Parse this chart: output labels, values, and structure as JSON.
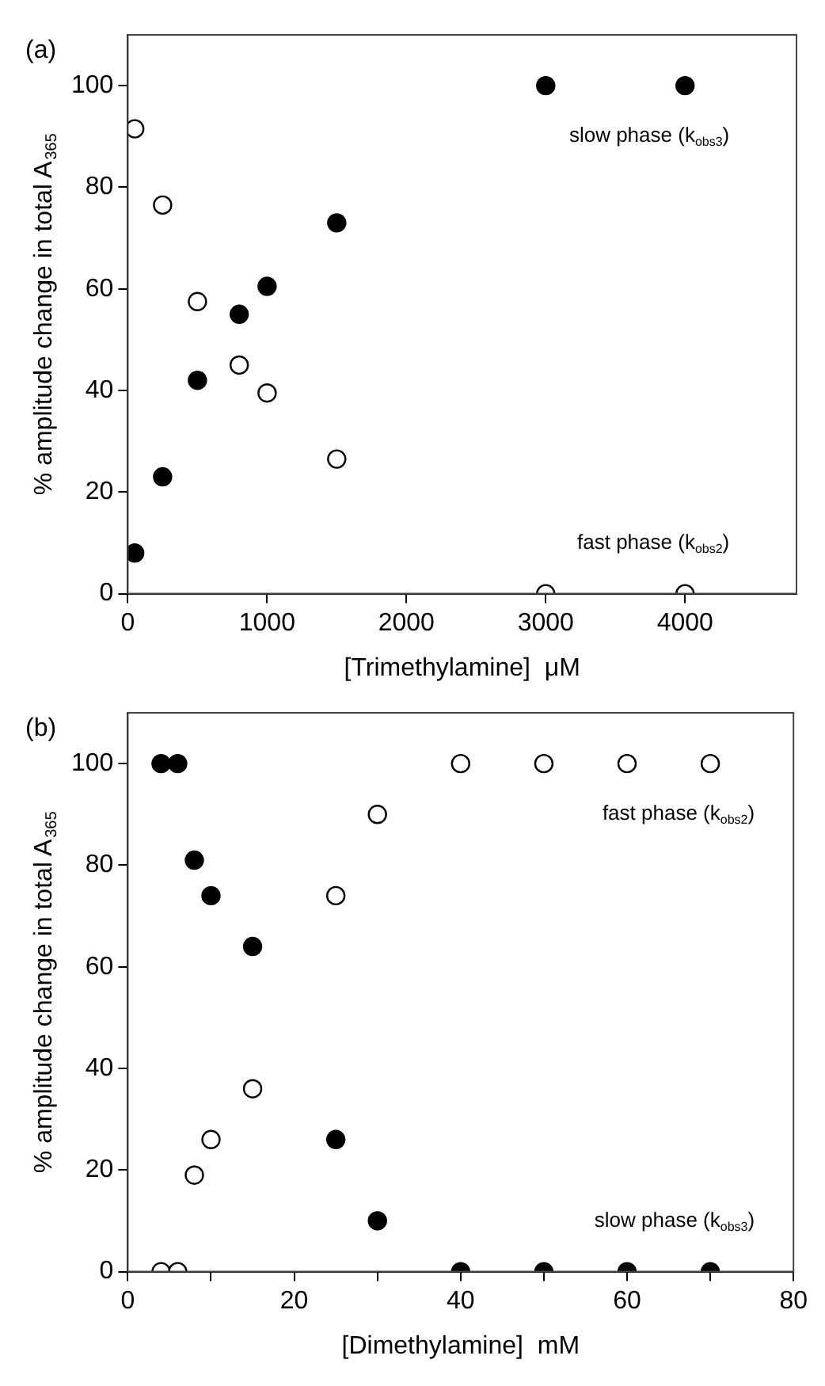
{
  "chart_data": [
    {
      "type": "scatter",
      "title": "(a)",
      "xlabel": "[Trimethylamine]  μM",
      "ylabel": "% amplitude change in total A$_{365}$",
      "xlim": [
        0,
        4800
      ],
      "xticks": [
        0,
        1000,
        2000,
        3000,
        4000
      ],
      "ylim": [
        0,
        110
      ],
      "yticks": [
        0,
        20,
        40,
        60,
        80,
        100
      ],
      "grid": false,
      "legend": false,
      "marker": "circle",
      "series": [
        {
          "name": "slow phase (k$_{obs3}$)",
          "color": "#000000",
          "x": [
            50,
            250,
            500,
            800,
            1000,
            1500,
            3000,
            4000
          ],
          "values": [
            8,
            23,
            42,
            55,
            60.5,
            73,
            100,
            100
          ]
        },
        {
          "name": "fast phase (k$_{obs2}$)",
          "color": "#ffffff",
          "x": [
            50,
            250,
            500,
            800,
            1000,
            1500,
            3000,
            4000
          ],
          "values": [
            91.5,
            76.5,
            57.5,
            45,
            39.5,
            26.5,
            0,
            0
          ]
        }
      ]
    },
    {
      "type": "scatter",
      "title": "(b)",
      "xlabel": "[Dimethylamine]  mM",
      "ylabel": "% amplitude change in total A$_{365}$",
      "xlim": [
        0,
        80
      ],
      "xticks": [
        0,
        {
          "value": 10,
          "label": null
        },
        20,
        {
          "value": 30,
          "label": null
        },
        40,
        {
          "value": 50,
          "label": null
        },
        60,
        {
          "value": 70,
          "label": null
        },
        80
      ],
      "ylim": [
        0,
        110
      ],
      "yticks": [
        0,
        20,
        40,
        60,
        80,
        100
      ],
      "grid": false,
      "legend": false,
      "marker": "circle",
      "series": [
        {
          "name": "slow phase (k$_{obs3}$)",
          "color": "#000000",
          "x": [
            4,
            6,
            8,
            10,
            15,
            25,
            30,
            40,
            50,
            60,
            70
          ],
          "values": [
            100,
            100,
            81,
            74,
            64,
            26,
            10,
            0,
            0,
            0,
            0
          ]
        },
        {
          "name": "fast phase (k$_{obs2}$)",
          "color": "#ffffff",
          "x": [
            4,
            6,
            8,
            10,
            15,
            25,
            30,
            40,
            50,
            60,
            70
          ],
          "values": [
            0,
            0,
            19,
            26,
            36,
            74,
            90,
            100,
            100,
            100,
            100
          ]
        }
      ]
    }
  ]
}
